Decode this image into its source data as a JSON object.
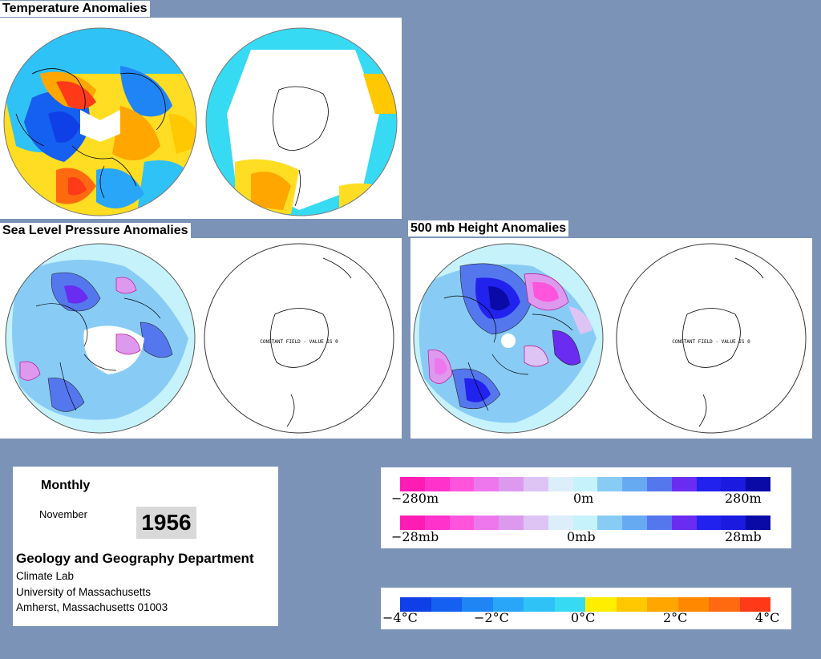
{
  "titles": {
    "temperature": "Temperature Anomalies",
    "slp": "Sea Level Pressure Anomalies",
    "height500": "500 mb Height Anomalies"
  },
  "maps": {
    "constant_field_label": "CONSTANT FIELD - VALUE IS 0"
  },
  "info": {
    "period": "Monthly",
    "month": "November",
    "year": "1956",
    "department": "Geology and Geography Department",
    "lab": "Climate Lab",
    "university": "University of Massachusetts",
    "address": "Amherst, Massachusetts 01003"
  },
  "scales": {
    "height": {
      "min": "−280m",
      "mid": "0m",
      "max": "280m"
    },
    "pressure": {
      "min": "−28mb",
      "mid": "0mb",
      "max": "28mb"
    },
    "temperature": {
      "t1": "−4°C",
      "t2": "−2°C",
      "t3": "0°C",
      "t4": "2°C",
      "t5": "4°C"
    }
  },
  "colors": {
    "background": "#7b93b6",
    "anomaly_scale": [
      "#ff1cb4",
      "#ff33cc",
      "#ff55dd",
      "#ee77ee",
      "#dd99ee",
      "#ddc4f4",
      "#ddeefb",
      "#c6f2fb",
      "#88ccf6",
      "#66aaf2",
      "#5577ee",
      "#6a2cf0",
      "#2222ee",
      "#1a1ae0",
      "#0a0aa6"
    ],
    "temperature_scale": [
      "#0f3fe6",
      "#1560f0",
      "#1f85f5",
      "#29a6f8",
      "#2fc2f7",
      "#36daf2",
      "#ffee00",
      "#ffc800",
      "#ffa600",
      "#ff8800",
      "#ff6a10",
      "#ff3a18"
    ]
  }
}
